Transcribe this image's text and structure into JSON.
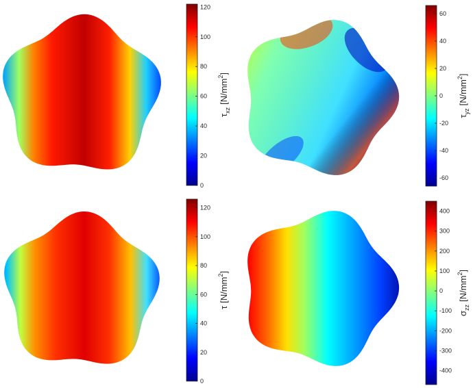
{
  "colormap": [
    "#00008f",
    "#0000ff",
    "#0080ff",
    "#00ffff",
    "#80ff80",
    "#ffff00",
    "#ff8000",
    "#ff0000",
    "#800000"
  ],
  "panels": [
    {
      "id": "tau-xz",
      "colorbar": {
        "symbol": "τ",
        "subscript": "xz",
        "unit": "[N/mm",
        "unit_sup": "2",
        "unit_close": "]",
        "ticks": [
          0,
          20,
          40,
          60,
          80,
          100,
          120
        ],
        "min": 0,
        "max": 122
      }
    },
    {
      "id": "tau-yz",
      "colorbar": {
        "symbol": "τ",
        "subscript": "yz",
        "unit": "[N/mm",
        "unit_sup": "2",
        "unit_close": "]",
        "ticks": [
          -60,
          -40,
          -20,
          0,
          20,
          40,
          60
        ],
        "min": -66,
        "max": 66
      }
    },
    {
      "id": "tau",
      "colorbar": {
        "symbol": "τ",
        "subscript": "",
        "unit": "[N/mm",
        "unit_sup": "2",
        "unit_close": "]",
        "ticks": [
          0,
          20,
          40,
          60,
          80,
          100,
          120
        ],
        "min": 0,
        "max": 126
      }
    },
    {
      "id": "sigma-zz",
      "colorbar": {
        "symbol": "σ",
        "subscript": "zz",
        "unit": "[N/mm",
        "unit_sup": "2",
        "unit_close": "]",
        "ticks": [
          -400,
          -300,
          -200,
          -100,
          0,
          100,
          200,
          300,
          400
        ],
        "min": -470,
        "max": 450
      }
    }
  ]
}
